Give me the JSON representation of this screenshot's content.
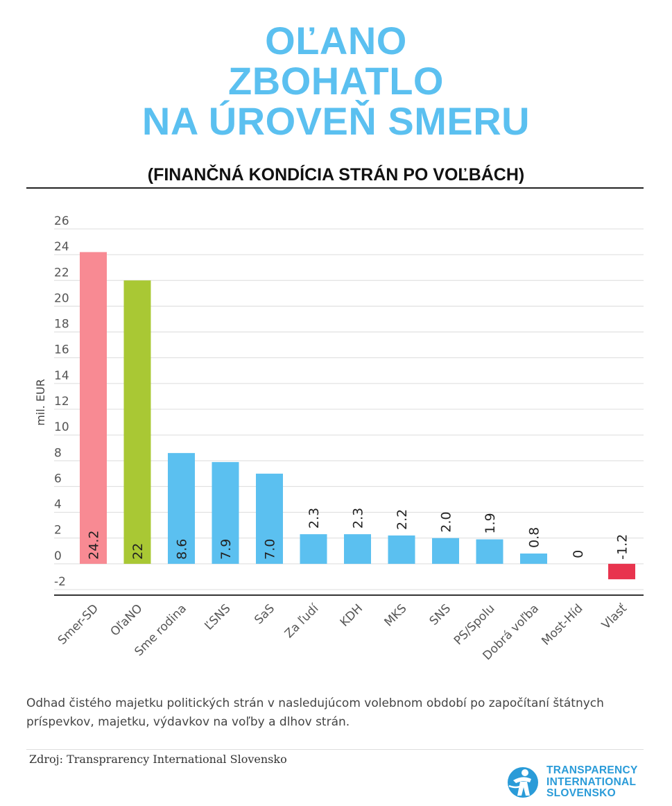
{
  "title_lines": [
    "OĽANO",
    "ZBOHATLO",
    "NA ÚROVEŇ SMERU"
  ],
  "subtitle": "(FINANČNÁ KONDÍCIA STRÁN PO VOĽBÁCH)",
  "description": "Odhad čistého majetku politických strán v nasledujúcom volebnom období po započítaní štátnych príspevkov, majetku, výdavkov na voľby a dlhov strán.",
  "source": "Zdroj: Transprarency International Slovensko",
  "logo": {
    "lines": [
      "TRANSPARENCY",
      "INTERNATIONAL",
      "SLOVENSKO"
    ],
    "icon": "globe-person-icon"
  },
  "colors": {
    "title": "#5bc0f0",
    "default_bar": "#5bc0f0",
    "negative_bar": "#e8344e"
  },
  "chart_data": {
    "type": "bar",
    "ylabel": "mil. EUR",
    "ylim": [
      -2,
      26
    ],
    "yticks": [
      -2,
      0,
      2,
      4,
      6,
      8,
      10,
      12,
      14,
      16,
      18,
      20,
      22,
      24,
      26
    ],
    "grid": true,
    "categories": [
      "Smer-SD",
      "OľaNO",
      "Sme rodina",
      "ĽSNS",
      "SaS",
      "Za ľudí",
      "KDH",
      "MKS",
      "SNS",
      "PS/Spolu",
      "Dobrá voľba",
      "Most-Híd",
      "Vlasť"
    ],
    "values": [
      24.2,
      22,
      8.6,
      7.9,
      7.0,
      2.3,
      2.3,
      2.2,
      2.0,
      1.9,
      0.8,
      0,
      -1.2
    ],
    "labels": [
      "24.2",
      "22",
      "8.6",
      "7.9",
      "7.0",
      "2.3",
      "2.3",
      "2.2",
      "2.0",
      "1.9",
      "0.8",
      "0",
      "-1.2"
    ],
    "bar_colors": [
      "#f88a93",
      "#a9c834",
      "#5bc0f0",
      "#5bc0f0",
      "#5bc0f0",
      "#5bc0f0",
      "#5bc0f0",
      "#5bc0f0",
      "#5bc0f0",
      "#5bc0f0",
      "#5bc0f0",
      "#5bc0f0",
      "#e8344e"
    ]
  }
}
